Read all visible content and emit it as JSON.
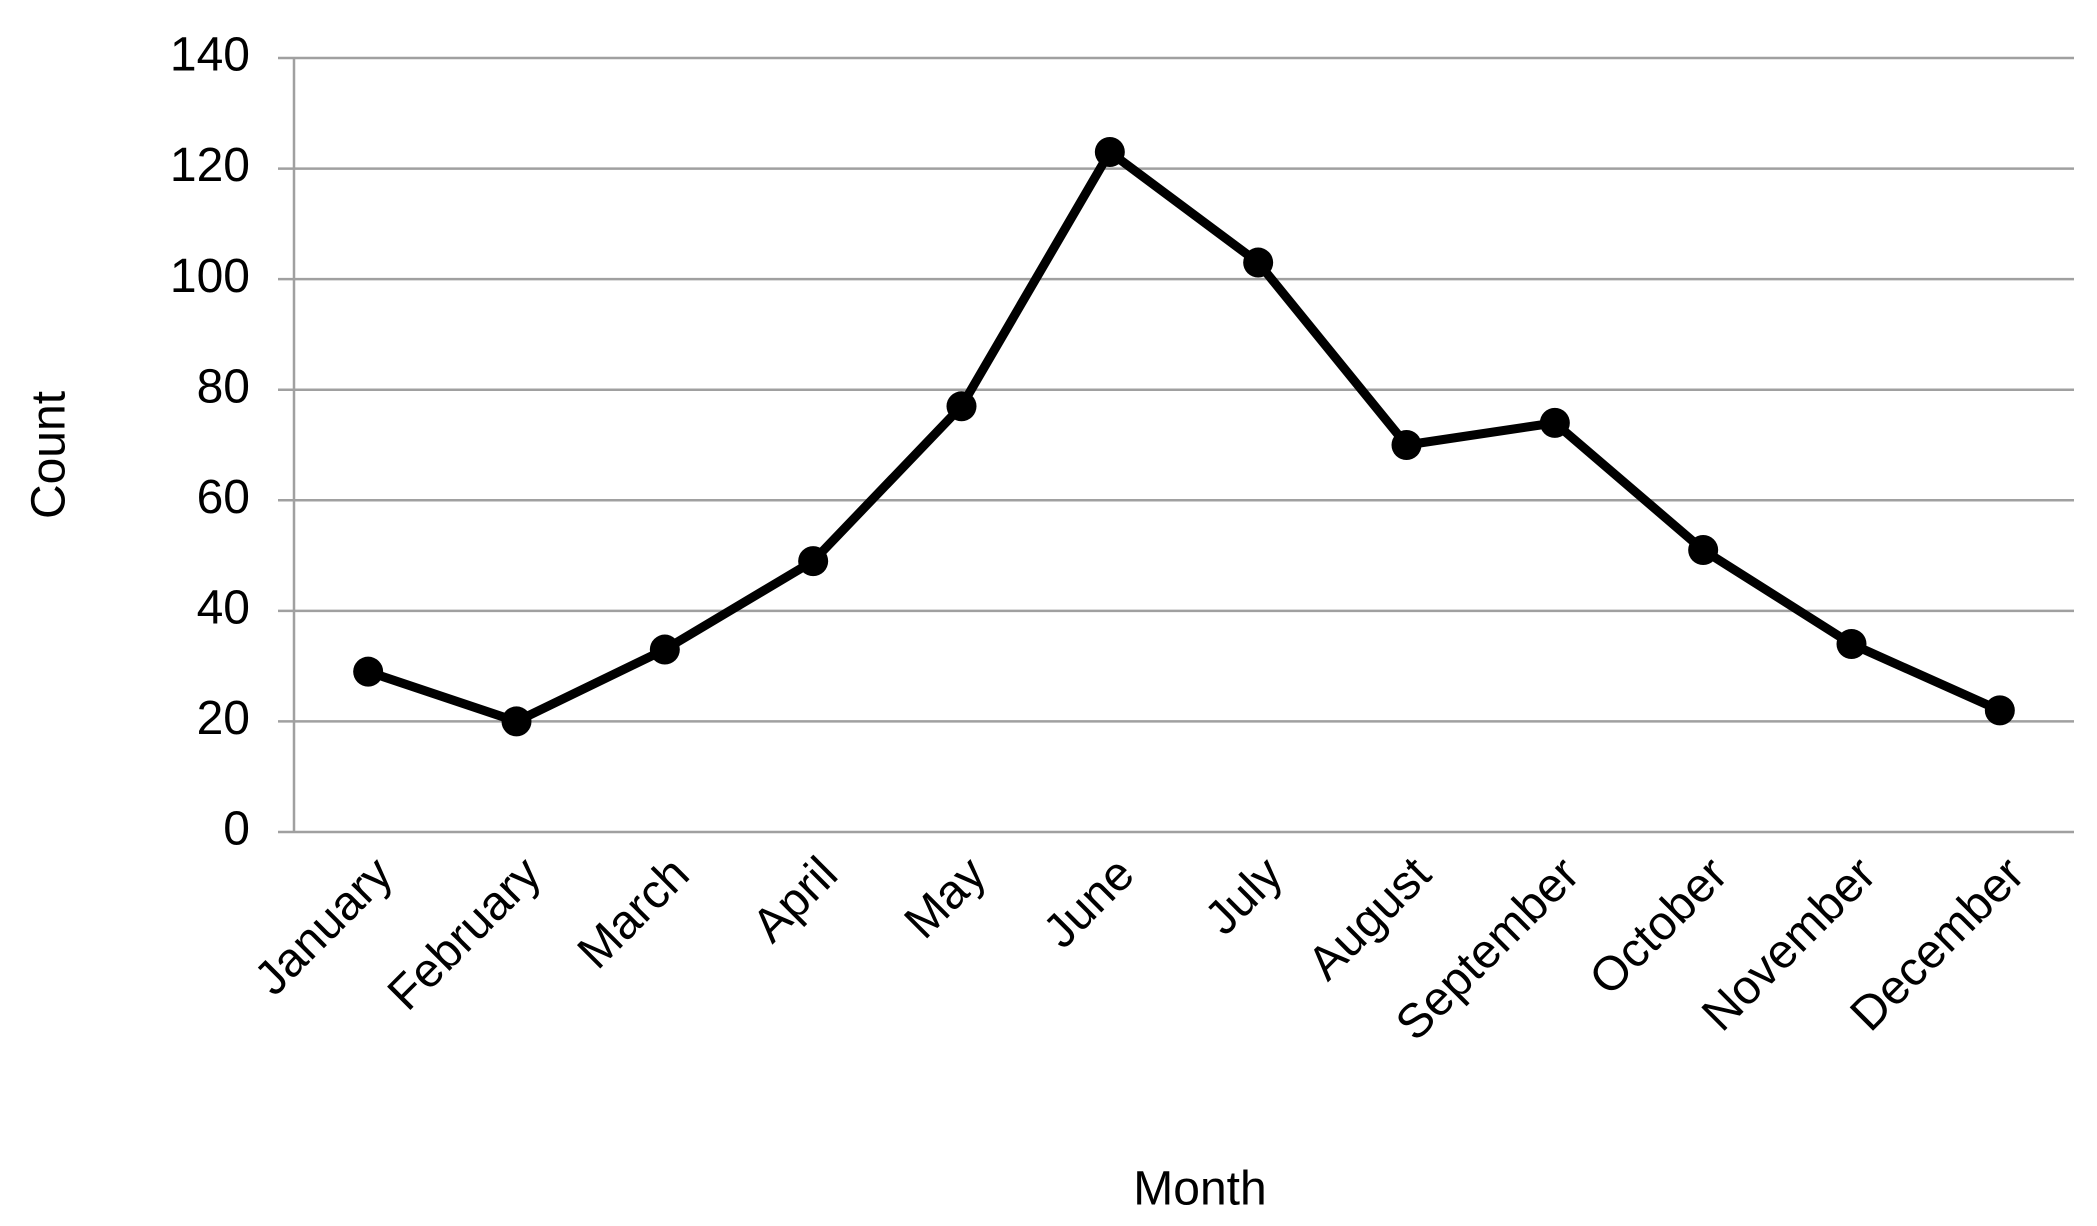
{
  "chart_data": {
    "type": "line",
    "xlabel": "Month",
    "ylabel": "Count",
    "categories": [
      "January",
      "February",
      "March",
      "April",
      "May",
      "June",
      "July",
      "August",
      "September",
      "October",
      "November",
      "December"
    ],
    "values": [
      29,
      20,
      33,
      49,
      77,
      123,
      103,
      70,
      74,
      51,
      34,
      22
    ],
    "color": "#000000",
    "ylim": [
      0,
      140
    ],
    "yticks": [
      0,
      20,
      40,
      60,
      80,
      100,
      120,
      140
    ],
    "grid": true
  }
}
